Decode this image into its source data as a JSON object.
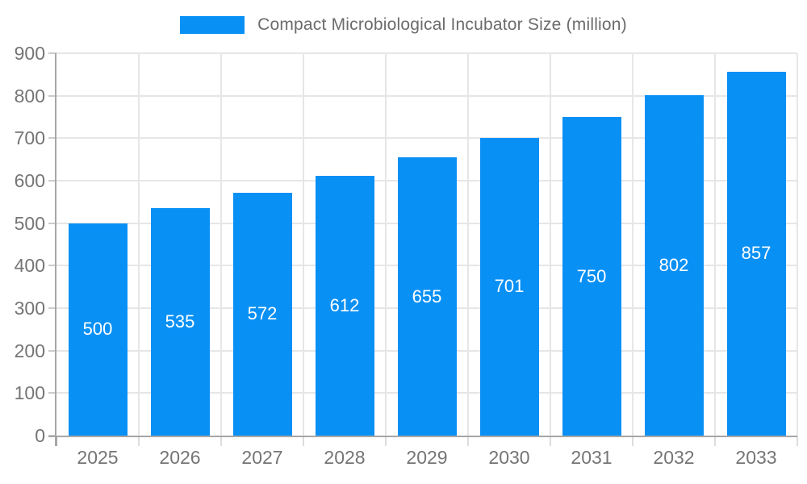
{
  "legend": {
    "label": "Compact Microbiological Incubator Size (million)"
  },
  "chart_data": {
    "type": "bar",
    "title": "Compact Microbiological Incubator Size (million)",
    "categories": [
      "2025",
      "2026",
      "2027",
      "2028",
      "2029",
      "2030",
      "2031",
      "2032",
      "2033"
    ],
    "values": [
      500,
      535,
      572,
      612,
      655,
      701,
      750,
      802,
      857
    ],
    "xlabel": "",
    "ylabel": "",
    "ylim": [
      0,
      900
    ],
    "ytick_step": 100,
    "grid": true,
    "legend_position": "top",
    "bar_color": "#0990f5",
    "bar_label_color": "#ffffff",
    "axis_text_color": "#757575",
    "grid_color": "#e6e6e6",
    "axis_line_color": "#a6a6a6"
  }
}
